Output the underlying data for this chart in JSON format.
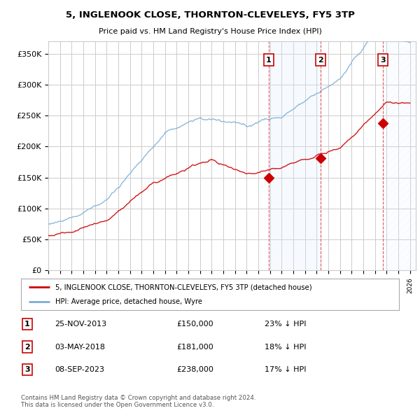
{
  "title": "5, INGLENOOK CLOSE, THORNTON-CLEVELEYS, FY5 3TP",
  "subtitle": "Price paid vs. HM Land Registry's House Price Index (HPI)",
  "ylabel_ticks": [
    "£0",
    "£50K",
    "£100K",
    "£150K",
    "£200K",
    "£250K",
    "£300K",
    "£350K"
  ],
  "ytick_vals": [
    0,
    50000,
    100000,
    150000,
    200000,
    250000,
    300000,
    350000
  ],
  "ylim": [
    0,
    370000
  ],
  "xlim_start": 1995.0,
  "xlim_end": 2026.5,
  "sale_dates": [
    2013.9,
    2018.35,
    2023.69
  ],
  "sale_prices": [
    150000,
    181000,
    238000
  ],
  "sale_labels": [
    "1",
    "2",
    "3"
  ],
  "legend_red": "5, INGLENOOK CLOSE, THORNTON-CLEVELEYS, FY5 3TP (detached house)",
  "legend_blue": "HPI: Average price, detached house, Wyre",
  "table_rows": [
    [
      "1",
      "25-NOV-2013",
      "£150,000",
      "23% ↓ HPI"
    ],
    [
      "2",
      "03-MAY-2018",
      "£181,000",
      "18% ↓ HPI"
    ],
    [
      "3",
      "08-SEP-2023",
      "£238,000",
      "17% ↓ HPI"
    ]
  ],
  "footnote": "Contains HM Land Registry data © Crown copyright and database right 2024.\nThis data is licensed under the Open Government Licence v3.0.",
  "hpi_color": "#7aadd4",
  "red_color": "#cc0000",
  "shade_color": "#ddeeff",
  "grid_color": "#cccccc",
  "background_color": "#ffffff"
}
